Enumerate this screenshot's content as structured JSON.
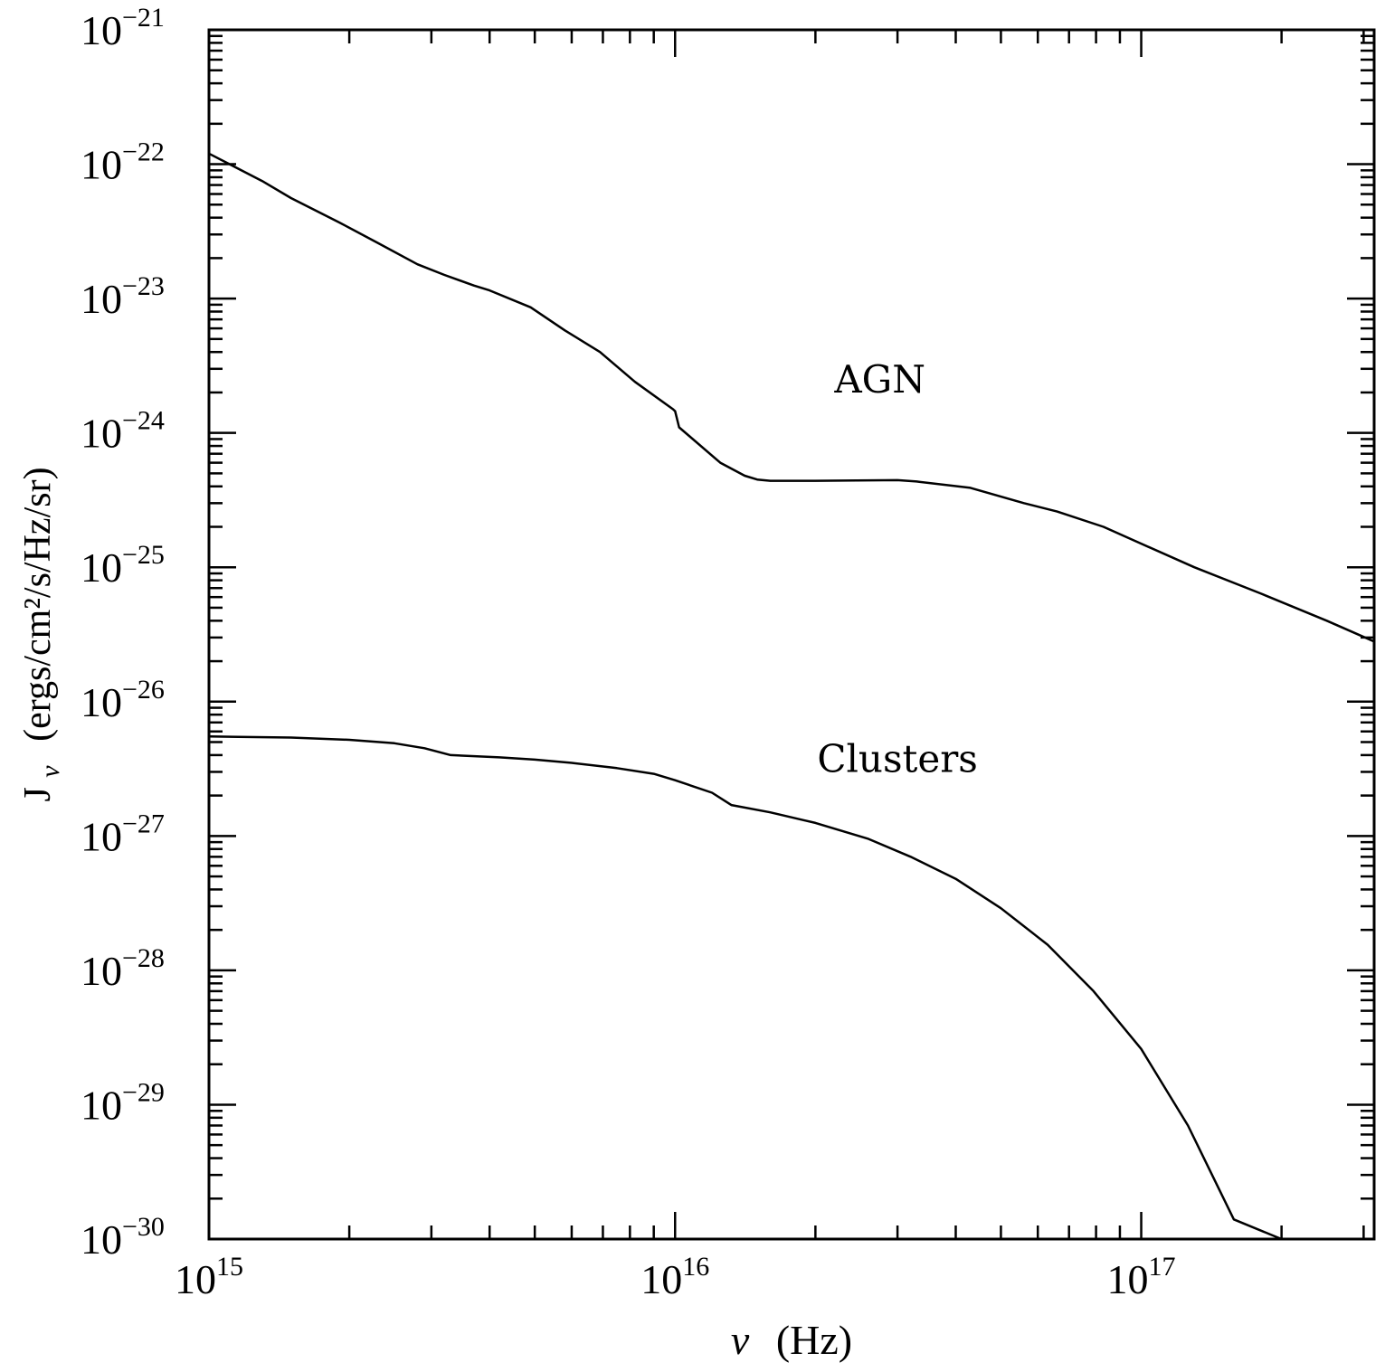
{
  "chart_data": {
    "type": "line",
    "title": "",
    "xlabel": {
      "symbol": "ν",
      "unit": "(Hz)"
    },
    "ylabel": {
      "symbol": "J",
      "subscript": "ν",
      "unit": "(ergs/cm²/s/Hz/sr)"
    },
    "x_scale": "log",
    "y_scale": "log",
    "xlim": [
      1000000000000000.0,
      3.16e+17
    ],
    "ylim": [
      1e-30,
      1e-21
    ],
    "x_ticks": [
      {
        "value": 1000000000000000.0,
        "base": "10",
        "exp": "15"
      },
      {
        "value": 1e+16,
        "base": "10",
        "exp": "16"
      },
      {
        "value": 1e+17,
        "base": "10",
        "exp": "17"
      }
    ],
    "y_ticks": [
      {
        "value": 1e-21,
        "base": "10",
        "exp": "−21"
      },
      {
        "value": 1e-22,
        "base": "10",
        "exp": "−22"
      },
      {
        "value": 1e-23,
        "base": "10",
        "exp": "−23"
      },
      {
        "value": 1e-24,
        "base": "10",
        "exp": "−24"
      },
      {
        "value": 1e-25,
        "base": "10",
        "exp": "−25"
      },
      {
        "value": 1e-26,
        "base": "10",
        "exp": "−26"
      },
      {
        "value": 1e-27,
        "base": "10",
        "exp": "−27"
      },
      {
        "value": 1e-28,
        "base": "10",
        "exp": "−28"
      },
      {
        "value": 1e-29,
        "base": "10",
        "exp": "−29"
      },
      {
        "value": 1e-30,
        "base": "10",
        "exp": "−30"
      }
    ],
    "series": [
      {
        "name": "AGN",
        "x": [
          1000000000000000.0,
          1300000000000000.0,
          1500000000000000.0,
          1900000000000000.0,
          2300000000000000.0,
          2800000000000000.0,
          3200000000000000.0,
          3700000000000000.0,
          4000000000000000.0,
          4900000000000000.0,
          5800000000000000.0,
          6900000000000000.0,
          8200000000000000.0,
          9900000000000000.0,
          1e+16,
          1.02e+16,
          1.25e+16,
          1.41e+16,
          1.5e+16,
          1.6e+16,
          2e+16,
          3e+16,
          3.3e+16,
          4.3e+16,
          5.6e+16,
          6.6e+16,
          8.3e+16,
          1e+17,
          1.3e+17,
          1.8e+17,
          2.5e+17,
          3.16e+17
        ],
        "y": [
          1.2e-22,
          7.5e-23,
          5.6e-23,
          3.7e-23,
          2.6e-23,
          1.8e-23,
          1.5e-23,
          1.25e-23,
          1.15e-23,
          8.6e-24,
          5.8e-24,
          4e-24,
          2.4e-24,
          1.5e-24,
          1.45e-24,
          1.1e-24,
          6e-25,
          4.8e-25,
          4.5e-25,
          4.4e-25,
          4.4e-25,
          4.45e-25,
          4.35e-25,
          3.9e-25,
          3e-25,
          2.6e-25,
          2e-25,
          1.5e-25,
          1e-25,
          6.4e-26,
          4e-26,
          2.8e-26
        ]
      },
      {
        "name": "Clusters",
        "x": [
          1000000000000000.0,
          1500000000000000.0,
          2000000000000000.0,
          2500000000000000.0,
          2900000000000000.0,
          3300000000000000.0,
          4200000000000000.0,
          5000000000000000.0,
          6000000000000000.0,
          7500000000000000.0,
          9000000000000000.0,
          1e+16,
          1.2e+16,
          1.32e+16,
          1.6e+16,
          2e+16,
          2.6e+16,
          3.2e+16,
          4e+16,
          5e+16,
          6.3e+16,
          7.9e+16,
          1e+17,
          1.26e+17,
          1.58e+17,
          2e+17
        ],
        "y": [
          5.5e-27,
          5.4e-27,
          5.2e-27,
          4.9e-27,
          4.5e-27,
          4e-27,
          3.85e-27,
          3.7e-27,
          3.5e-27,
          3.2e-27,
          2.9e-27,
          2.6e-27,
          2.1e-27,
          1.7e-27,
          1.5e-27,
          1.25e-27,
          9.5e-28,
          7e-28,
          4.8e-28,
          2.9e-28,
          1.55e-28,
          7e-29,
          2.6e-29,
          7e-30,
          1.4e-30,
          1e-30
        ]
      }
    ],
    "annotations": [
      {
        "text": "AGN",
        "x": 2.75e+16,
        "y": 2e-24
      },
      {
        "text": "Clusters",
        "x": 3e+16,
        "y": 3e-27
      }
    ]
  }
}
